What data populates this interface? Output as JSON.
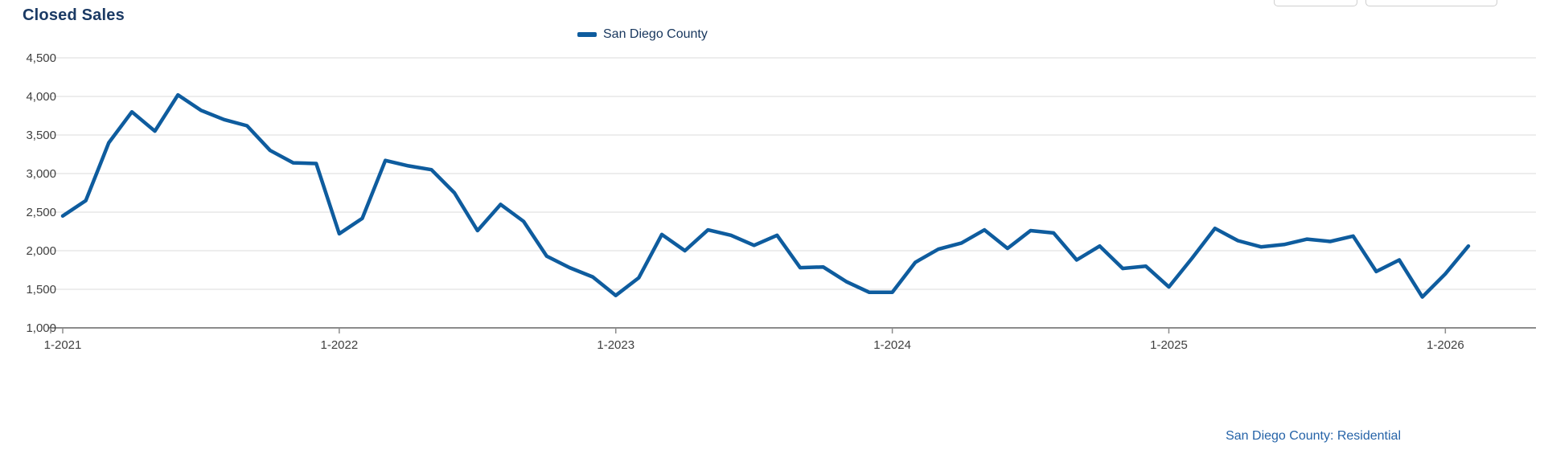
{
  "title": "Closed Sales",
  "legend": {
    "label": "San Diego County"
  },
  "footer": {
    "label": "San Diego County: Residential"
  },
  "colors": {
    "line": "#0E5C9E",
    "title": "#1B3A64",
    "legend_text": "#17365D",
    "footer_text": "#2563A8",
    "grid": "#DBDBDB",
    "axis": "#8C8C8C",
    "tick_text": "#404040"
  },
  "chart_data": {
    "type": "line",
    "title": "Closed Sales",
    "xlabel": "",
    "ylabel": "",
    "ylim": [
      1000,
      4500
    ],
    "yticks": [
      1000,
      1500,
      2000,
      2500,
      3000,
      3500,
      4000,
      4500
    ],
    "grid": "horizontal",
    "legend_position": "top-center",
    "xticks": [
      "1-2021",
      "1-2022",
      "1-2023",
      "1-2024",
      "1-2025",
      "1-2026"
    ],
    "x": [
      "1-2021",
      "2-2021",
      "3-2021",
      "4-2021",
      "5-2021",
      "6-2021",
      "7-2021",
      "8-2021",
      "9-2021",
      "10-2021",
      "11-2021",
      "12-2021",
      "1-2022",
      "2-2022",
      "3-2022",
      "4-2022",
      "5-2022",
      "6-2022",
      "7-2022",
      "8-2022",
      "9-2022",
      "10-2022",
      "11-2022",
      "12-2022",
      "1-2023",
      "2-2023",
      "3-2023",
      "4-2023",
      "5-2023",
      "6-2023",
      "7-2023",
      "8-2023",
      "9-2023",
      "10-2023",
      "11-2023",
      "12-2023",
      "1-2024",
      "2-2024",
      "3-2024",
      "4-2024",
      "5-2024",
      "6-2024",
      "7-2024",
      "8-2024",
      "9-2024",
      "10-2024",
      "11-2024",
      "12-2024",
      "1-2025",
      "2-2025",
      "3-2025",
      "4-2025",
      "5-2025",
      "6-2025",
      "7-2025",
      "8-2025",
      "9-2025",
      "10-2025",
      "11-2025",
      "12-2025",
      "1-2026",
      "2-2026"
    ],
    "series": [
      {
        "name": "San Diego County",
        "values": [
          2450,
          2650,
          3400,
          3800,
          3550,
          4020,
          3820,
          3700,
          3620,
          3300,
          3140,
          3130,
          2220,
          2420,
          3170,
          3100,
          3050,
          2750,
          2260,
          2600,
          2380,
          1930,
          1780,
          1660,
          1420,
          1650,
          2210,
          2000,
          2270,
          2200,
          2070,
          2200,
          1780,
          1790,
          1600,
          1460,
          1460,
          1850,
          2020,
          2100,
          2270,
          2030,
          2260,
          2230,
          1880,
          2060,
          1770,
          1800,
          1530,
          1900,
          2290,
          2130,
          2050,
          2080,
          2150,
          2120,
          2190,
          1730,
          1880,
          1400,
          1700,
          2060
        ]
      }
    ]
  }
}
